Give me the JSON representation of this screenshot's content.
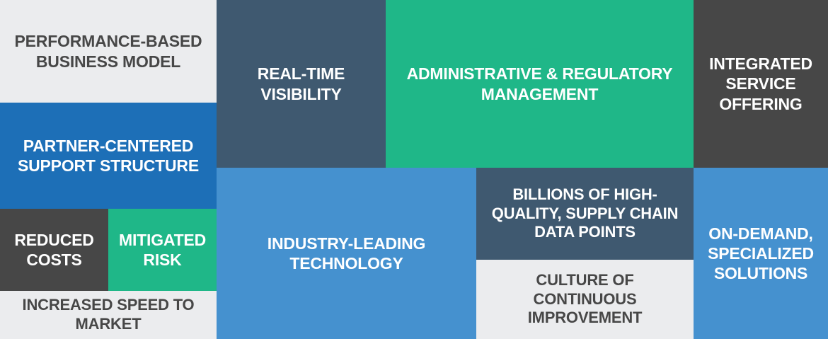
{
  "colors": {
    "light_gray": "#ebecee",
    "slate": "#3f5970",
    "green": "#1fb788",
    "charcoal": "#474747",
    "royal_blue": "#1d6fb7",
    "sky_blue": "#4591cf",
    "dark_text": "#474747",
    "white_text": "#ffffff"
  },
  "tiles": {
    "performance_model": "PERFORMANCE-BASED\nBUSINESS MODEL",
    "real_time_visibility": "REAL-TIME\nVISIBILITY",
    "administrative_regulatory": "ADMINISTRATIVE & REGULATORY\nMANAGEMENT",
    "integrated_service": "INTEGRATED\nSERVICE\nOFFERING",
    "partner_support": "PARTNER-CENTERED\nSUPPORT STRUCTURE",
    "reduced_costs": "REDUCED\nCOSTS",
    "mitigated_risk": "MITIGATED\nRISK",
    "industry_technology": "INDUSTRY-LEADING\nTECHNOLOGY",
    "billions_data_points": "BILLIONS OF HIGH-\nQUALITY, SUPPLY CHAIN\nDATA POINTS",
    "on_demand_solutions": "ON-DEMAND,\nSPECIALIZED\nSOLUTIONS",
    "increased_speed": "INCREASED SPEED TO\nMARKET",
    "culture_improvement": "CULTURE OF\nCONTINUOUS\nIMPROVEMENT"
  }
}
